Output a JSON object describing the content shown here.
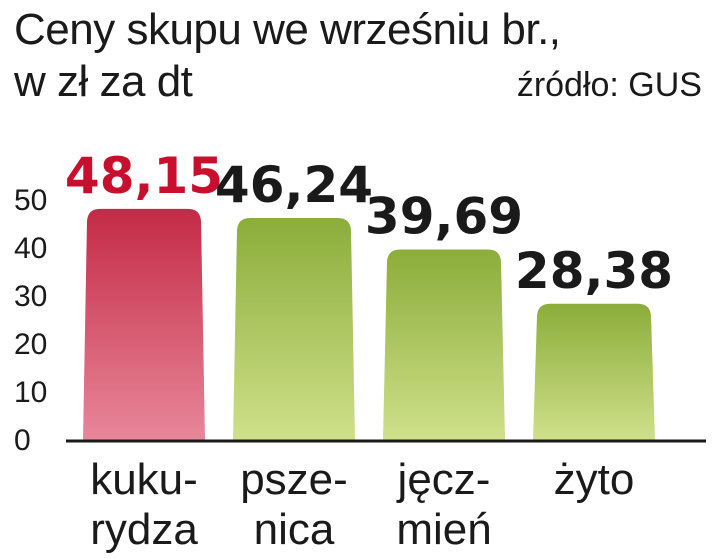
{
  "title_line1": "Ceny skupu we wrześniu br.,",
  "title_line2": "w zł za dt",
  "source": "źródło: GUS",
  "colors": {
    "highlight_text": "#c8102e",
    "normal_text": "#1a1a1a",
    "red_bar_top": "#c42a45",
    "red_bar_bottom": "#e8879a",
    "green_bar_top": "#8bad3a",
    "green_bar_bottom": "#cfe08a",
    "axis": "#1a1a1a"
  },
  "chart_data": {
    "type": "bar",
    "title": "Ceny skupu we wrześniu br., w zł za dt",
    "categories": [
      [
        "kuku-",
        "rydza"
      ],
      [
        "psze-",
        "nica"
      ],
      [
        "jęcz-",
        "mień"
      ],
      [
        "żyto"
      ]
    ],
    "values": [
      48.15,
      46.24,
      39.69,
      28.38
    ],
    "value_labels": [
      "48,15",
      "46,24",
      "39,69",
      "28,38"
    ],
    "highlight": [
      true,
      false,
      false,
      false
    ],
    "ylim": [
      0,
      50
    ],
    "yticks": [
      "0",
      "10",
      "20",
      "30",
      "40",
      "50"
    ],
    "grid": false
  }
}
